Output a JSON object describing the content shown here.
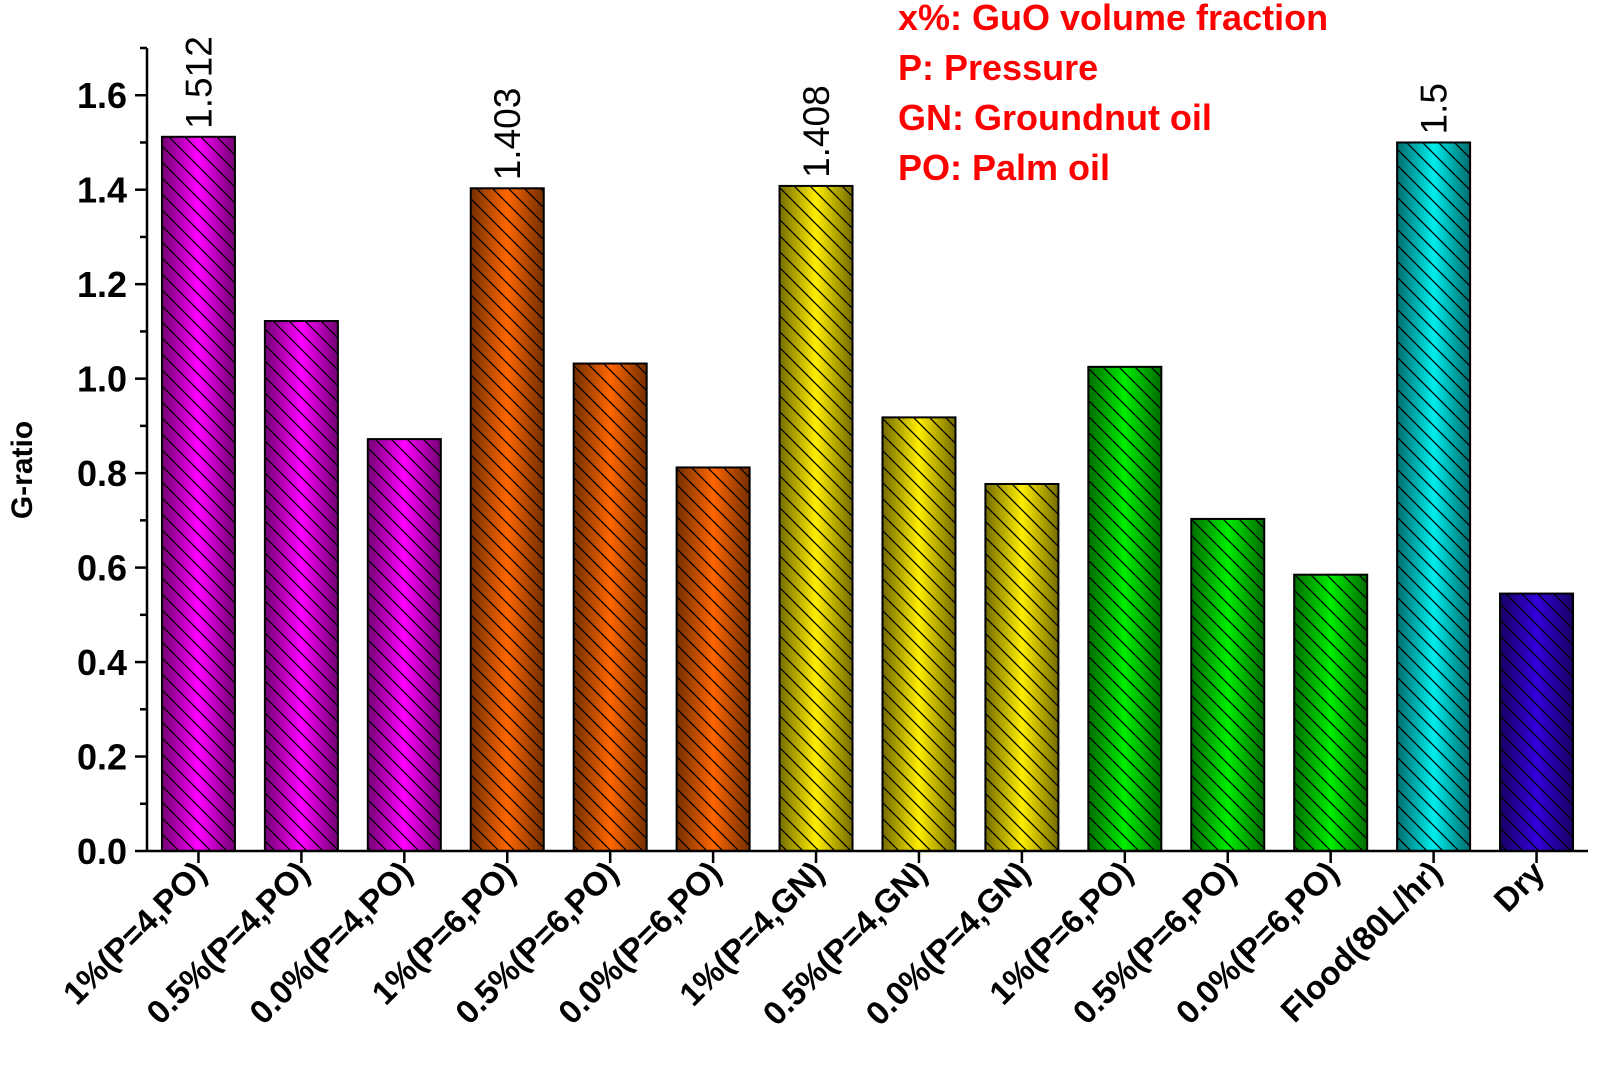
{
  "chart_data": {
    "type": "bar",
    "ylabel": "G-ratio",
    "xlabel": "",
    "ylim": [
      0,
      1.7
    ],
    "yticks": [
      "0.0",
      "0.2",
      "0.4",
      "0.6",
      "0.8",
      "1.0",
      "1.2",
      "1.4",
      "1.6"
    ],
    "categories": [
      "1%(P=4,PO)",
      "0.5%(P=4,PO)",
      "0.0%(P=4,PO)",
      "1%(P=6,PO)",
      "0.5%(P=6,PO)",
      "0.0%(P=6,PO)",
      "1%(P=4,GN)",
      "0.5%(P=4,GN)",
      "0.0%(P=4,GN)",
      "1%(P=6,PO)",
      "0.5%(P=6,PO)",
      "0.0%(P=6,PO)",
      "Flood(80L/hr)",
      "Dry"
    ],
    "values": [
      1.512,
      1.122,
      0.872,
      1.403,
      1.032,
      0.812,
      1.408,
      0.918,
      0.777,
      1.025,
      0.703,
      0.585,
      1.5,
      0.545
    ],
    "data_labels": [
      "1.512",
      "",
      "",
      "1.403",
      "",
      "",
      "1.408",
      "",
      "",
      "",
      "",
      "",
      "1.5",
      ""
    ],
    "colors": [
      "#ff00ff",
      "#ff00ff",
      "#ff00ff",
      "#ff6600",
      "#ff6600",
      "#ff6600",
      "#ffee00",
      "#ffee00",
      "#ffee00",
      "#00ee00",
      "#00ee00",
      "#00ee00",
      "#00eeee",
      "#3300dd"
    ],
    "hatch": "diagonal",
    "grid": false,
    "legend_position": "top-right",
    "annotations": [
      "x%: GuO volume fraction",
      "P: Pressure",
      "GN: Groundnut oil",
      "PO: Palm oil"
    ],
    "annotation_color": "#ff0000"
  }
}
